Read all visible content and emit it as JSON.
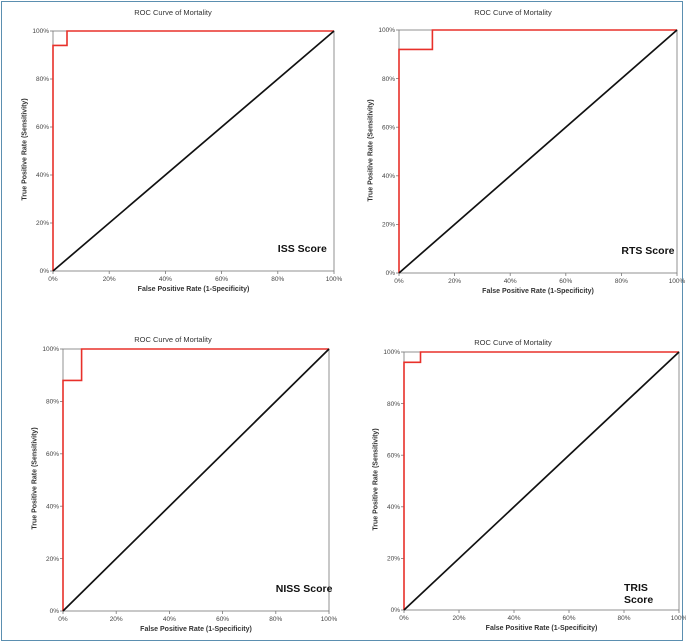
{
  "chart_data": [
    {
      "type": "line",
      "title": "ROC Curve of Mortality",
      "xlabel": "False Positive Rate (1-Specificity)",
      "ylabel": "True Positive Rate (Sensitivity)",
      "annotation": "ISS Score",
      "xlim": [
        0,
        100
      ],
      "ylim": [
        0,
        100
      ],
      "x_ticks": [
        "0%",
        "20%",
        "40%",
        "60%",
        "80%",
        "100%"
      ],
      "y_ticks": [
        "0%",
        "20%",
        "40%",
        "60%",
        "80%",
        "100%"
      ],
      "series": [
        {
          "color": "#e8302a",
          "x": [
            0,
            0,
            5,
            5,
            100
          ],
          "y": [
            0,
            94,
            94,
            100,
            100
          ]
        },
        {
          "color": "#111111",
          "x": [
            0,
            100
          ],
          "y": [
            0,
            100
          ]
        }
      ]
    },
    {
      "type": "line",
      "title": "ROC Curve of Mortality",
      "xlabel": "False Positive Rate (1-Specificity)",
      "ylabel": "True Positive Rate (Sensitivity)",
      "annotation": "RTS Score",
      "xlim": [
        0,
        100
      ],
      "ylim": [
        0,
        100
      ],
      "x_ticks": [
        "0%",
        "20%",
        "40%",
        "60%",
        "80%",
        "100%"
      ],
      "y_ticks": [
        "0%",
        "20%",
        "40%",
        "60%",
        "80%",
        "100%"
      ],
      "series": [
        {
          "color": "#e8302a",
          "x": [
            0,
            0,
            12,
            12,
            100
          ],
          "y": [
            0,
            92,
            92,
            100,
            100
          ]
        },
        {
          "color": "#111111",
          "x": [
            0,
            100
          ],
          "y": [
            0,
            100
          ]
        }
      ]
    },
    {
      "type": "line",
      "title": "ROC Curve of Mortality",
      "xlabel": "False Positive Rate (1-Specificity)",
      "ylabel": "True Positive Rate (Sensitivity)",
      "annotation": "NISS Score",
      "xlim": [
        0,
        100
      ],
      "ylim": [
        0,
        100
      ],
      "x_ticks": [
        "0%",
        "20%",
        "40%",
        "60%",
        "80%",
        "100%"
      ],
      "y_ticks": [
        "0%",
        "20%",
        "40%",
        "60%",
        "80%",
        "100%"
      ],
      "series": [
        {
          "color": "#e8302a",
          "x": [
            0,
            0,
            7,
            7,
            100
          ],
          "y": [
            0,
            88,
            88,
            100,
            100
          ]
        },
        {
          "color": "#111111",
          "x": [
            0,
            100
          ],
          "y": [
            0,
            100
          ]
        }
      ]
    },
    {
      "type": "line",
      "title": "ROC Curve of Mortality",
      "xlabel": "False Positive Rate (1-Specificity)",
      "ylabel": "True Positive Rate (Sensitivity)",
      "annotation": "TRIS Score",
      "xlim": [
        0,
        100
      ],
      "ylim": [
        0,
        100
      ],
      "x_ticks": [
        "0%",
        "20%",
        "40%",
        "60%",
        "80%",
        "100%"
      ],
      "y_ticks": [
        "0%",
        "20%",
        "40%",
        "60%",
        "80%",
        "100%"
      ],
      "series": [
        {
          "color": "#e8302a",
          "x": [
            0,
            0,
            6,
            6,
            100
          ],
          "y": [
            0,
            96,
            96,
            100,
            100
          ]
        },
        {
          "color": "#111111",
          "x": [
            0,
            100
          ],
          "y": [
            0,
            100
          ]
        }
      ]
    }
  ]
}
